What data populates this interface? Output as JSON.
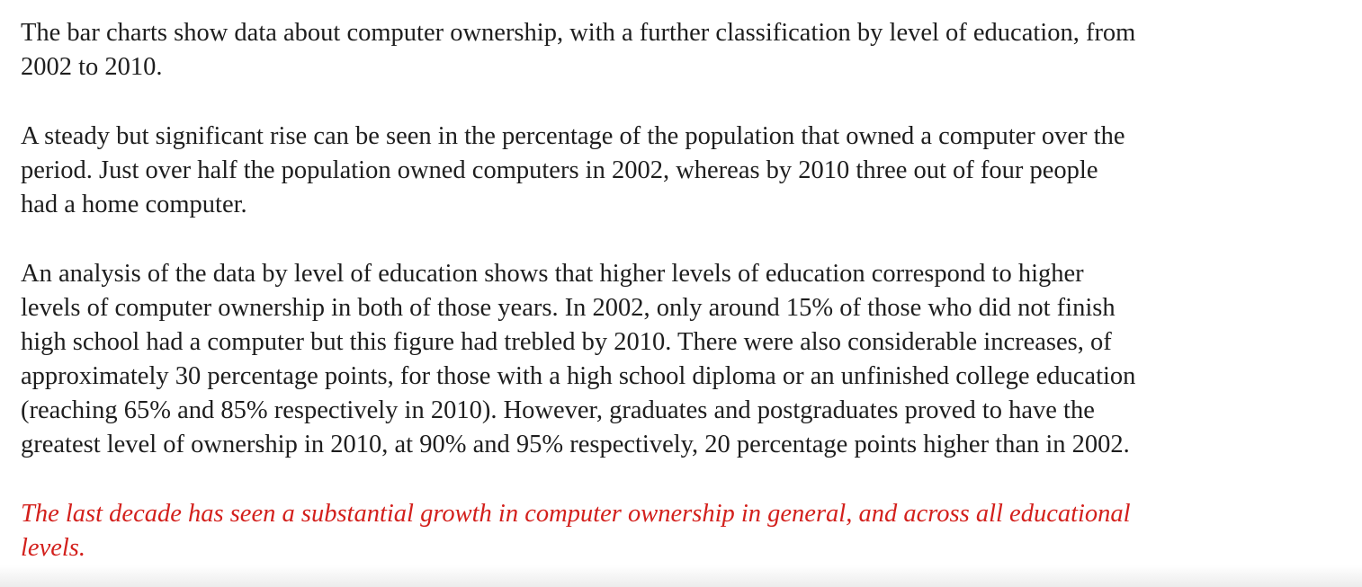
{
  "document": {
    "paragraphs": [
      "The bar charts show data about computer ownership, with a further classification by level of education, from\n2002 to 2010.",
      "A steady but significant rise can be seen in the percentage of the population that owned a computer over the\nperiod. Just over half the population owned computers in 2002, whereas by 2010 three out of four people\nhad a home computer.",
      "An analysis of the data by level of education shows that higher levels of education correspond to higher\nlevels of computer ownership in both of those years. In 2002, only around 15% of those who did not finish\nhigh school had a computer but this figure had trebled by 2010. There were also considerable increases, of\napproximately 30 percentage points, for those with a high school diploma or an unfinished college education\n(reaching 65% and 85% respectively in 2010). However, graduates and postgraduates proved to have the\ngreatest level of ownership in 2010, at 90% and 95% respectively, 20 percentage points higher than in 2002."
    ],
    "conclusion": "The last decade has seen a substantial growth in computer ownership in general, and across all educational\nlevels."
  },
  "colors": {
    "body_text": "#1e1e1e",
    "conclusion_text": "#d3201c",
    "background": "#ffffff"
  }
}
